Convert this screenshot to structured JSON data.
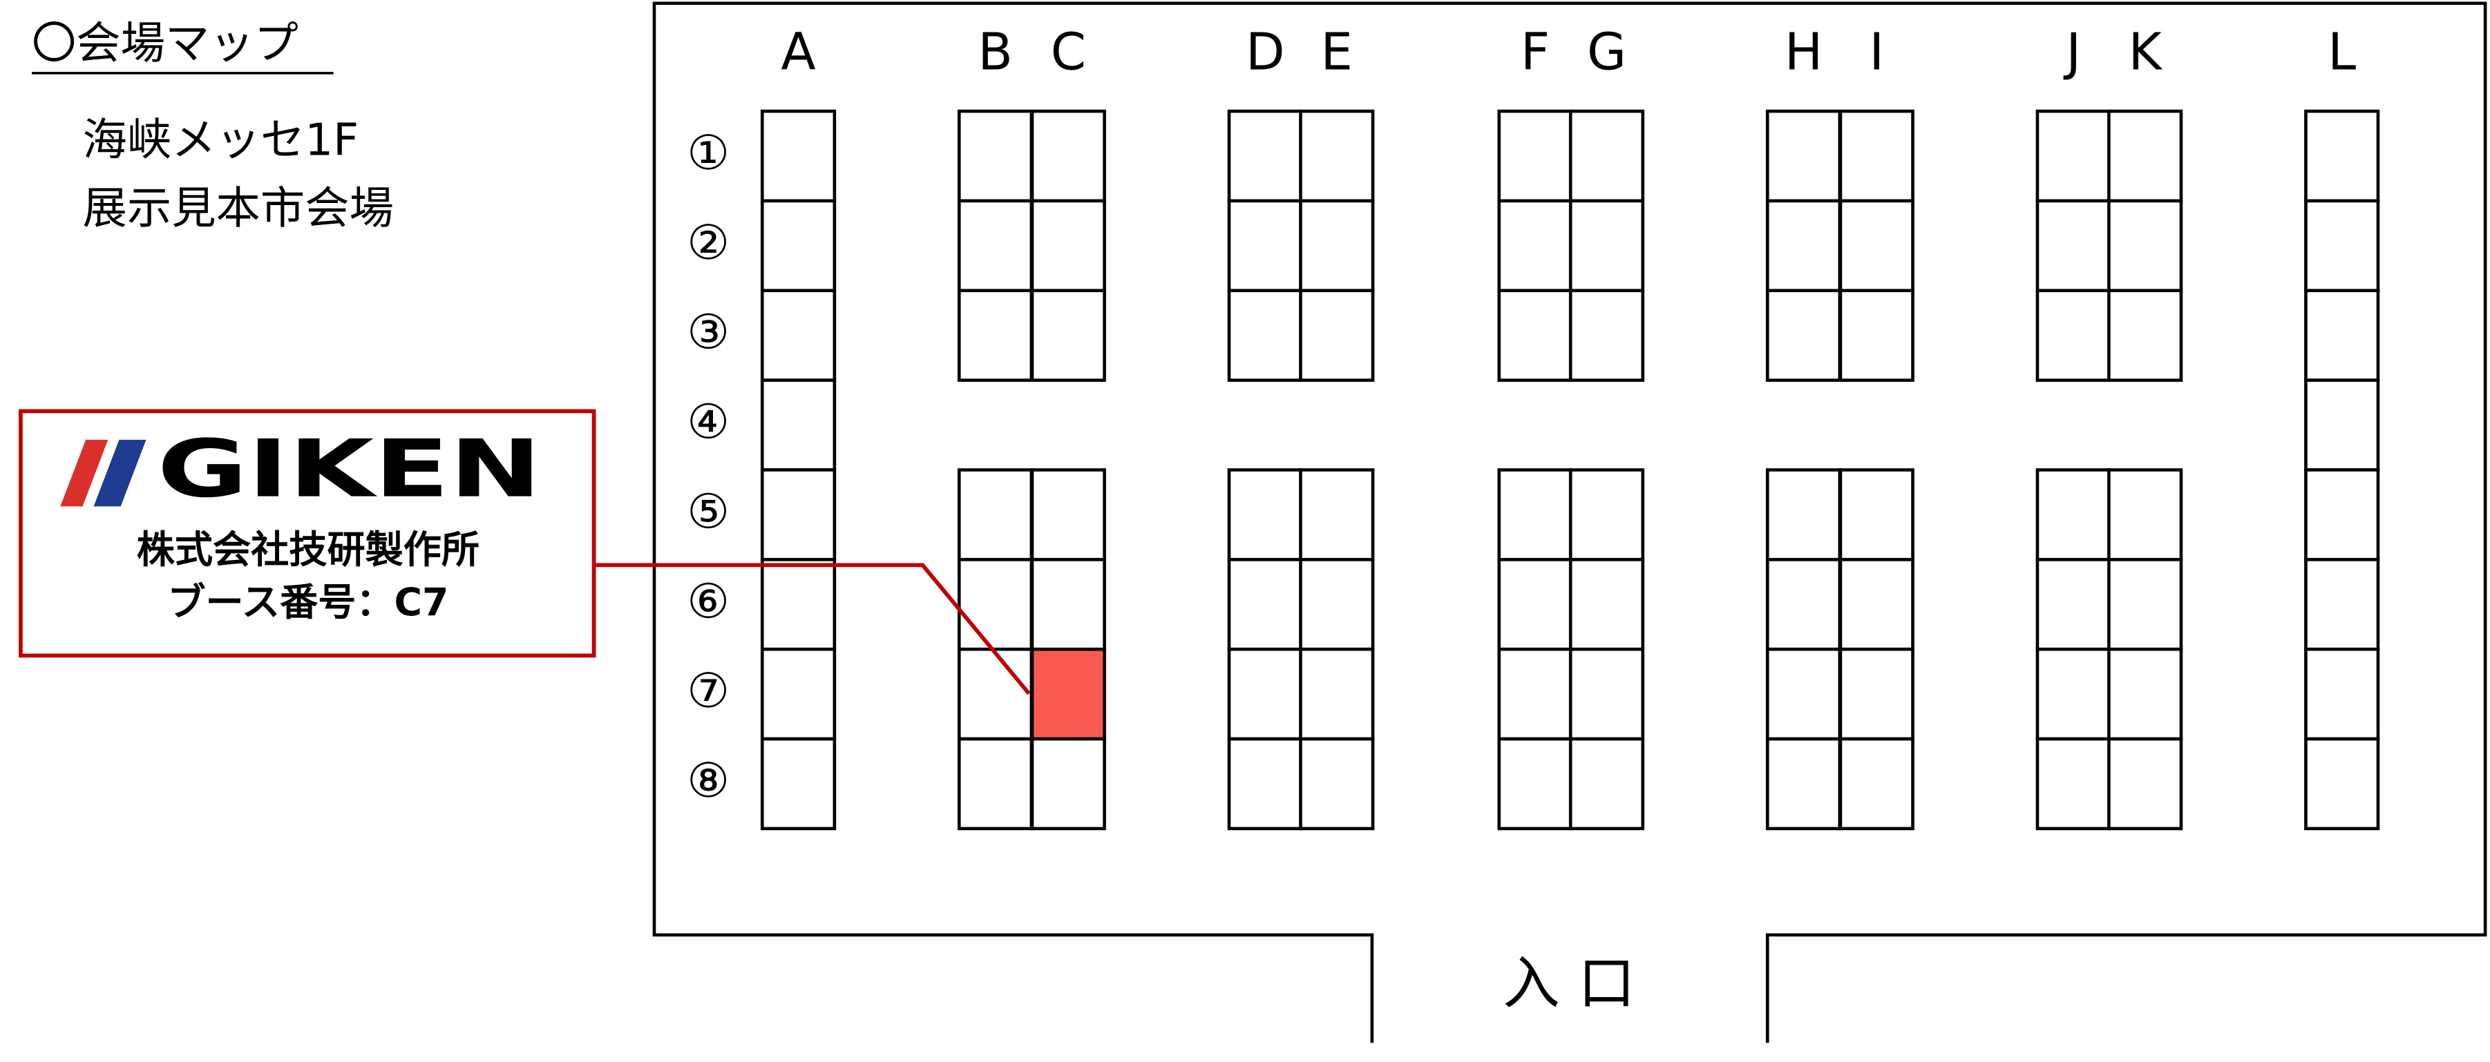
{
  "title": "〇会場マップ",
  "venue": [
    "海峡メッセ1F",
    "展示見本市会場"
  ],
  "columns": [
    "A",
    "B",
    "C",
    "D",
    "E",
    "F",
    "G",
    "H",
    "I",
    "J",
    "K",
    "L"
  ],
  "rows": [
    "①",
    "②",
    "③",
    "④",
    "⑤",
    "⑥",
    "⑦",
    "⑧"
  ],
  "callout": {
    "logo": "GIKEN",
    "company": "株式会社技研製作所",
    "booth": "ブース番号：C7"
  },
  "entrance": "入 口"
}
